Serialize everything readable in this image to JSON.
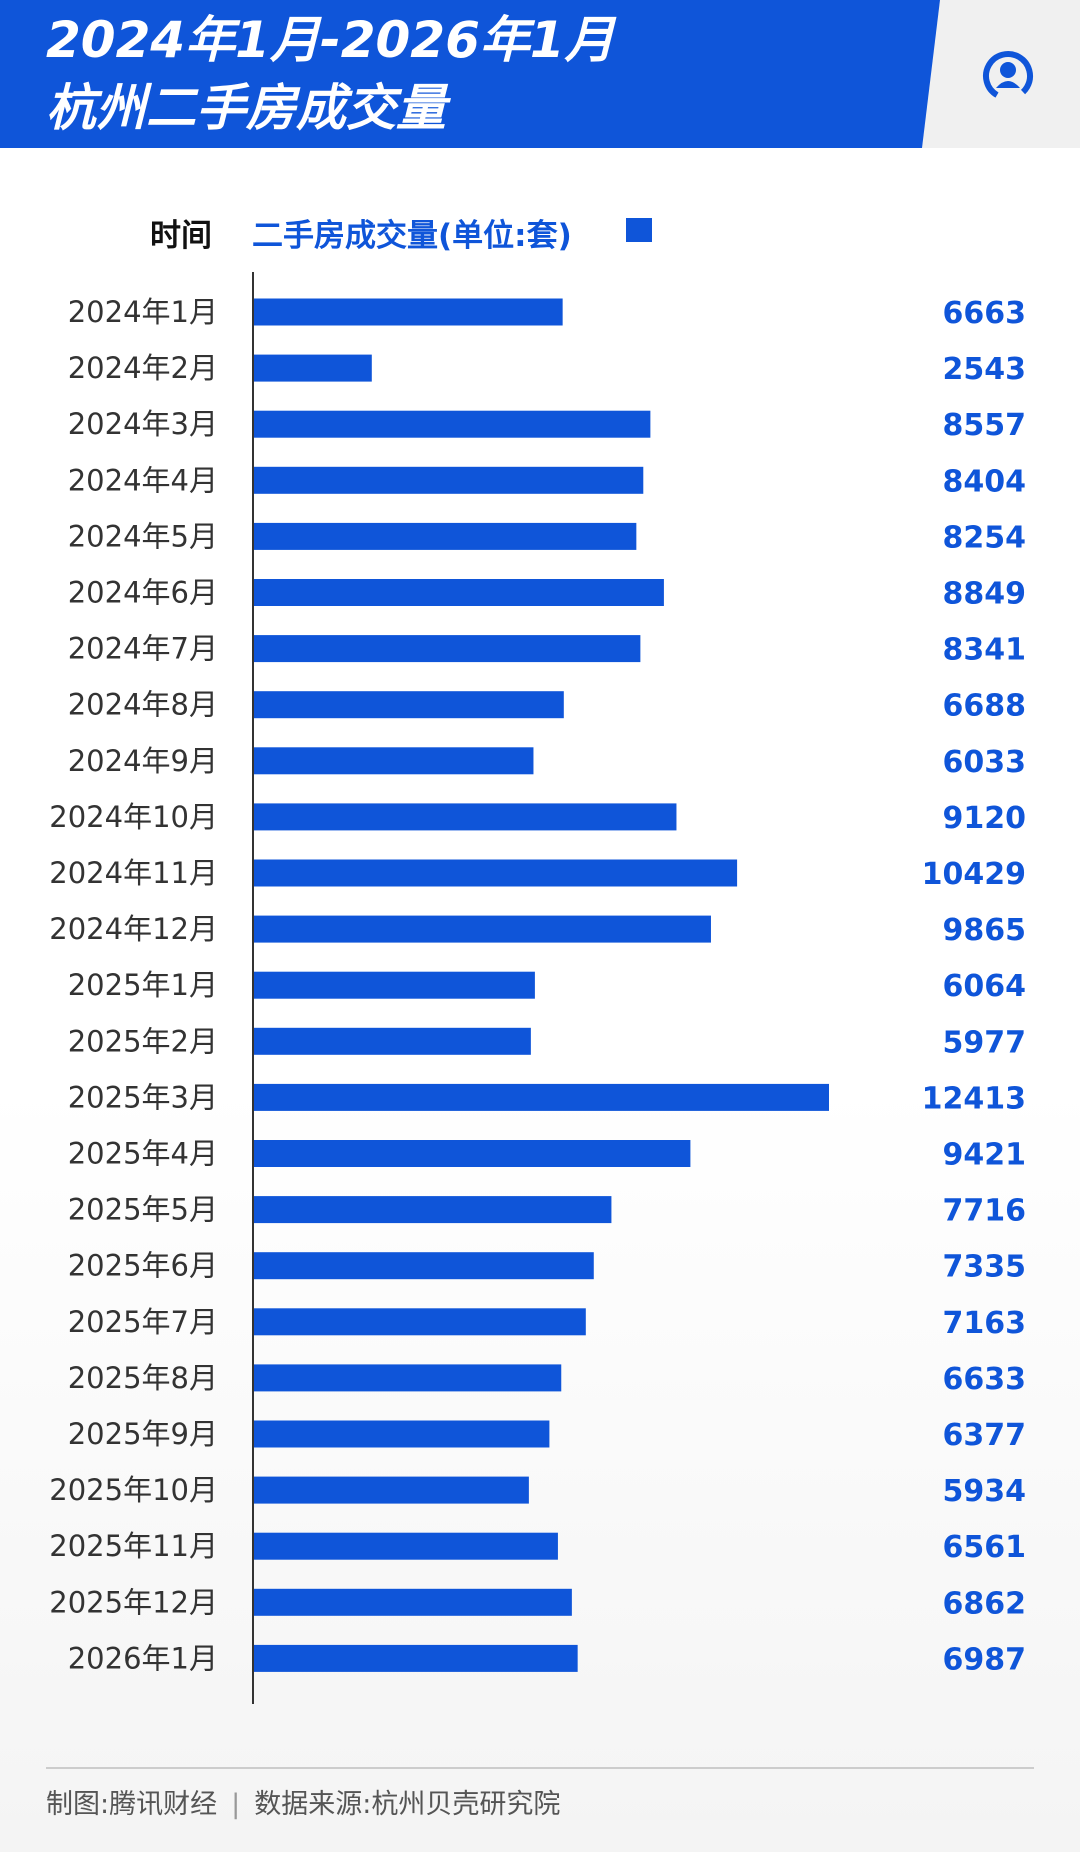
{
  "header": {
    "title_line1": "2024年1月-2026年1月",
    "title_line2": "杭州二手房成交量",
    "logo_icon": "news-logo-icon"
  },
  "columns": {
    "time_label": "时间",
    "series_label": "二手房成交量(单位:套)"
  },
  "chart_data": {
    "type": "bar",
    "orientation": "horizontal",
    "categories": [
      "2024年1月",
      "2024年2月",
      "2024年3月",
      "2024年4月",
      "2024年5月",
      "2024年6月",
      "2024年7月",
      "2024年8月",
      "2024年9月",
      "2024年10月",
      "2024年11月",
      "2024年12月",
      "2025年1月",
      "2025年2月",
      "2025年3月",
      "2025年4月",
      "2025年5月",
      "2025年6月",
      "2025年7月",
      "2025年8月",
      "2025年9月",
      "2025年10月",
      "2025年11月",
      "2025年12月",
      "2026年1月"
    ],
    "series": [
      {
        "name": "二手房成交量(单位:套)",
        "values": [
          6663,
          2543,
          8557,
          8404,
          8254,
          8849,
          8341,
          6688,
          6033,
          9120,
          10429,
          9865,
          6064,
          5977,
          12413,
          9421,
          7716,
          7335,
          7163,
          6633,
          6377,
          5934,
          6561,
          6862,
          6987
        ]
      }
    ],
    "xlim": [
      0,
      12413
    ],
    "grid": false,
    "legend": "top",
    "color": "#0f55d9"
  },
  "footer": {
    "credit": "制图:腾讯财经",
    "separator": "|",
    "source": "数据来源:杭州贝壳研究院"
  }
}
